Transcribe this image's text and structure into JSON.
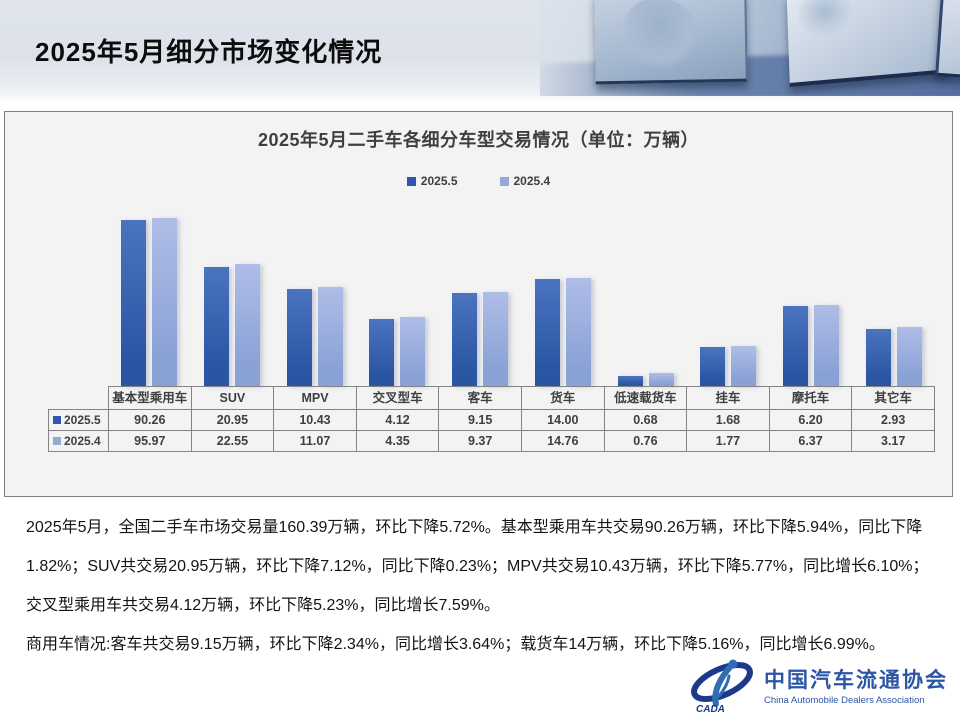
{
  "header": {
    "title": "2025年5月细分市场变化情况"
  },
  "chart": {
    "title": "2025年5月二手车各细分车型交易情况（单位：万辆）",
    "legend": [
      {
        "label": "2025.5",
        "color": "#2e57a7"
      },
      {
        "label": "2025.4",
        "color": "#93a9d8"
      }
    ]
  },
  "chart_data": {
    "type": "bar",
    "title": "2025年5月二手车各细分车型交易情况（单位：万辆）",
    "categories": [
      "基本型乘用车",
      "SUV",
      "MPV",
      "交叉型车",
      "客车",
      "货车",
      "低速载货车",
      "挂车",
      "摩托车",
      "其它车"
    ],
    "series": [
      {
        "name": "2025.5",
        "color": "#2e57a7",
        "color_top": "#4a74c0",
        "color_bottom": "#2a55a2",
        "values": [
          90.26,
          20.95,
          10.43,
          4.12,
          9.15,
          14.0,
          0.68,
          1.68,
          6.2,
          2.93
        ],
        "display": [
          "90.26",
          "20.95",
          "10.43",
          "4.12",
          "9.15",
          "14.00",
          "0.68",
          "1.68",
          "6.20",
          "2.93"
        ]
      },
      {
        "name": "2025.4",
        "color": "#93a9d8",
        "color_top": "#afbde7",
        "color_bottom": "#89a1d5",
        "values": [
          95.97,
          22.55,
          11.07,
          4.35,
          9.37,
          14.76,
          0.76,
          1.77,
          6.37,
          3.17
        ],
        "display": [
          "95.97",
          "22.55",
          "11.07",
          "4.35",
          "9.37",
          "14.76",
          "0.76",
          "1.77",
          "6.37",
          "3.17"
        ]
      }
    ],
    "yscale": "log",
    "axis_min": 0.5,
    "grid": false,
    "legend_position": "top",
    "data_table_shown": true
  },
  "body": {
    "paragraphs": [
      "2025年5月，全国二手车市场交易量160.39万辆，环比下降5.72%。基本型乘用车共交易90.26万辆，环比下降5.94%，同比下降1.82%；SUV共交易20.95万辆，环比下降7.12%，同比下降0.23%；MPV共交易10.43万辆，环比下降5.77%，同比增长6.10%；交叉型乘用车共交易4.12万辆，环比下降5.23%，同比增长7.59%。",
      "商用车情况:客车共交易9.15万辆，环比下降2.34%，同比增长3.64%；载货车14万辆，环比下降5.16%，同比增长6.99%。"
    ]
  },
  "logo": {
    "name_cn": "中国汽车流通协会",
    "name_en": "China Automobile Dealers Association",
    "emblem_text": "CADA"
  }
}
